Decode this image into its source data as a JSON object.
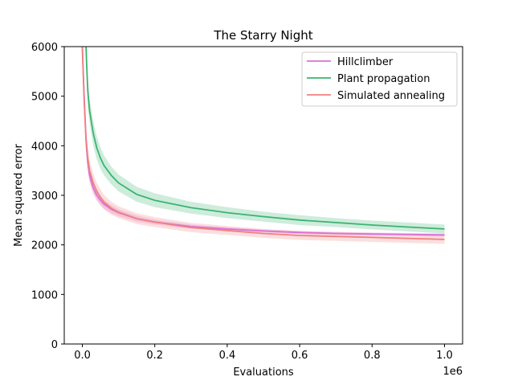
{
  "chart_data": {
    "type": "line",
    "title": "The Starry Night",
    "xlabel": "Evaluations",
    "ylabel": "Mean squared error",
    "x_offset_label": "1e6",
    "xlim": [
      -50000,
      1050000
    ],
    "ylim": [
      0,
      6000
    ],
    "x_ticks": [
      {
        "value": 0,
        "label": "0.0"
      },
      {
        "value": 200000,
        "label": "0.2"
      },
      {
        "value": 400000,
        "label": "0.4"
      },
      {
        "value": 600000,
        "label": "0.6"
      },
      {
        "value": 800000,
        "label": "0.8"
      },
      {
        "value": 1000000,
        "label": "1.0"
      }
    ],
    "y_ticks": [
      {
        "value": 0,
        "label": "0"
      },
      {
        "value": 1000,
        "label": "1000"
      },
      {
        "value": 2000,
        "label": "2000"
      },
      {
        "value": 3000,
        "label": "3000"
      },
      {
        "value": 4000,
        "label": "4000"
      },
      {
        "value": 5000,
        "label": "5000"
      },
      {
        "value": 6000,
        "label": "6000"
      }
    ],
    "grid": false,
    "legend_position": "top-right",
    "series": [
      {
        "name": "Hillclimber",
        "color": "#da70d6",
        "x": [
          0,
          5000,
          10000,
          15000,
          20000,
          30000,
          40000,
          50000,
          60000,
          80000,
          100000,
          150000,
          200000,
          300000,
          400000,
          500000,
          600000,
          700000,
          800000,
          900000,
          1000000
        ],
        "y": [
          6000,
          5000,
          4100,
          3650,
          3400,
          3150,
          3000,
          2900,
          2820,
          2720,
          2650,
          2530,
          2460,
          2370,
          2320,
          2280,
          2250,
          2230,
          2220,
          2210,
          2200
        ],
        "band_half_width": [
          300,
          250,
          200,
          170,
          150,
          130,
          110,
          100,
          90,
          80,
          70,
          60,
          50,
          40,
          35,
          30,
          30,
          30,
          30,
          30,
          30
        ]
      },
      {
        "name": "Plant propagation",
        "color": "#3cb371",
        "x": [
          10000,
          12000,
          15000,
          20000,
          30000,
          40000,
          50000,
          60000,
          80000,
          100000,
          150000,
          200000,
          300000,
          400000,
          500000,
          600000,
          700000,
          800000,
          900000,
          1000000
        ],
        "y": [
          6000,
          5600,
          5100,
          4700,
          4250,
          3950,
          3750,
          3600,
          3400,
          3250,
          3020,
          2900,
          2750,
          2650,
          2570,
          2500,
          2450,
          2400,
          2360,
          2320
        ],
        "band_half_width": [
          300,
          300,
          280,
          250,
          250,
          230,
          220,
          200,
          180,
          170,
          150,
          140,
          120,
          110,
          100,
          100,
          90,
          90,
          90,
          90
        ]
      },
      {
        "name": "Simulated annealing",
        "color": "#f08080",
        "x": [
          0,
          5000,
          10000,
          15000,
          20000,
          30000,
          40000,
          50000,
          60000,
          80000,
          100000,
          150000,
          200000,
          300000,
          400000,
          500000,
          600000,
          700000,
          800000,
          900000,
          1000000
        ],
        "y": [
          6000,
          4900,
          4150,
          3750,
          3500,
          3250,
          3080,
          2960,
          2860,
          2740,
          2660,
          2530,
          2460,
          2350,
          2290,
          2230,
          2190,
          2170,
          2150,
          2130,
          2110
        ],
        "band_half_width": [
          300,
          280,
          250,
          230,
          210,
          190,
          170,
          160,
          150,
          130,
          120,
          110,
          100,
          95,
          90,
          90,
          90,
          90,
          90,
          90,
          90
        ]
      }
    ]
  }
}
